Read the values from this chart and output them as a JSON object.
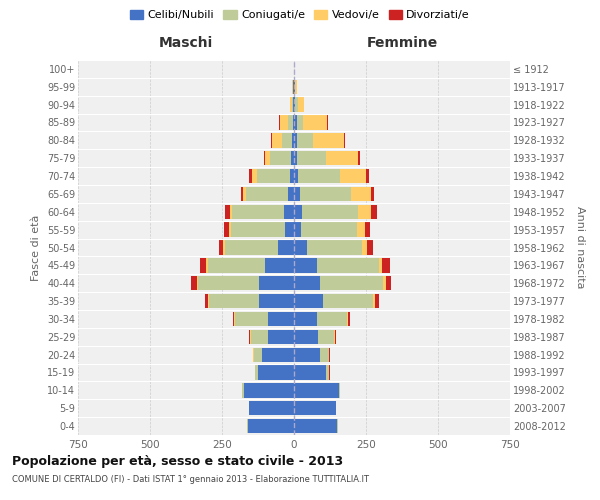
{
  "age_groups": [
    "0-4",
    "5-9",
    "10-14",
    "15-19",
    "20-24",
    "25-29",
    "30-34",
    "35-39",
    "40-44",
    "45-49",
    "50-54",
    "55-59",
    "60-64",
    "65-69",
    "70-74",
    "75-79",
    "80-84",
    "85-89",
    "90-94",
    "95-99",
    "100+"
  ],
  "birth_years": [
    "2008-2012",
    "2003-2007",
    "1998-2002",
    "1993-1997",
    "1988-1992",
    "1983-1987",
    "1978-1982",
    "1973-1977",
    "1968-1972",
    "1963-1967",
    "1958-1962",
    "1953-1957",
    "1948-1952",
    "1943-1947",
    "1938-1942",
    "1933-1937",
    "1928-1932",
    "1923-1927",
    "1918-1922",
    "1913-1917",
    "≤ 1912"
  ],
  "maschi": {
    "celibi": [
      160,
      155,
      175,
      125,
      110,
      90,
      90,
      120,
      120,
      100,
      55,
      30,
      35,
      22,
      15,
      10,
      8,
      5,
      3,
      2,
      0
    ],
    "coniugati": [
      2,
      2,
      5,
      10,
      30,
      60,
      115,
      175,
      215,
      200,
      185,
      190,
      180,
      145,
      115,
      75,
      35,
      15,
      5,
      2,
      0
    ],
    "vedovi": [
      0,
      0,
      0,
      1,
      2,
      2,
      2,
      2,
      3,
      5,
      5,
      5,
      8,
      10,
      15,
      15,
      35,
      30,
      5,
      2,
      0
    ],
    "divorziati": [
      0,
      0,
      0,
      1,
      2,
      3,
      5,
      12,
      20,
      20,
      15,
      18,
      18,
      8,
      10,
      5,
      2,
      2,
      0,
      0,
      0
    ]
  },
  "femmine": {
    "nubili": [
      150,
      145,
      155,
      110,
      90,
      85,
      80,
      100,
      90,
      80,
      45,
      25,
      28,
      22,
      15,
      12,
      10,
      10,
      5,
      2,
      0
    ],
    "coniugate": [
      2,
      2,
      5,
      12,
      30,
      55,
      105,
      175,
      220,
      215,
      190,
      195,
      195,
      175,
      145,
      100,
      55,
      20,
      8,
      2,
      0
    ],
    "vedove": [
      0,
      0,
      0,
      1,
      2,
      2,
      3,
      5,
      8,
      12,
      20,
      25,
      45,
      70,
      90,
      110,
      110,
      85,
      20,
      5,
      1
    ],
    "divorziate": [
      0,
      0,
      0,
      1,
      2,
      3,
      5,
      15,
      20,
      25,
      20,
      20,
      20,
      10,
      10,
      8,
      3,
      2,
      1,
      0,
      0
    ]
  },
  "colors": {
    "celibi": "#4472C4",
    "coniugati": "#BFCC99",
    "vedovi": "#FFCC66",
    "divorziati": "#CC2222"
  },
  "title": "Popolazione per età, sesso e stato civile - 2013",
  "subtitle": "COMUNE DI CERTALDO (FI) - Dati ISTAT 1° gennaio 2013 - Elaborazione TUTTITALIA.IT",
  "xlabel_left": "Maschi",
  "xlabel_right": "Femmine",
  "ylabel_left": "Fasce di età",
  "ylabel_right": "Anni di nascita",
  "xlim": 750,
  "bg_color": "#FFFFFF",
  "plot_bg": "#F0F0F0",
  "legend_labels": [
    "Celibi/Nubili",
    "Coniugati/e",
    "Vedovi/e",
    "Divorziati/e"
  ]
}
